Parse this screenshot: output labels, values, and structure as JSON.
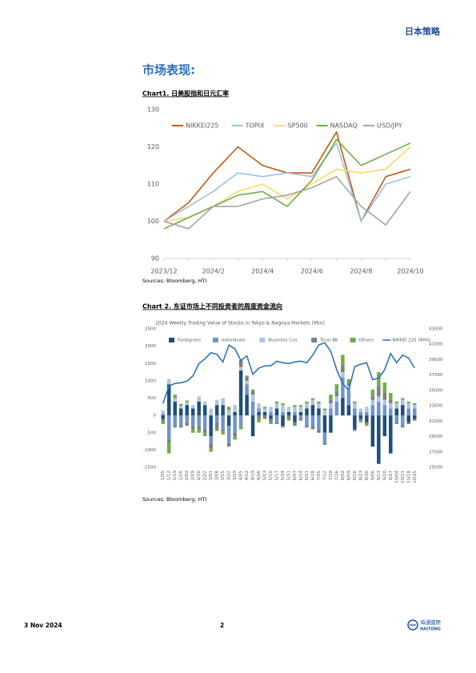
{
  "header": {
    "title": "日本策略"
  },
  "section_title": "市场表现:",
  "chart_data": [
    {
      "type": "line",
      "caption": "Chart1.  日美股指和日元汇率",
      "source": "Sources: Bloomberg, HTI",
      "categories": [
        "2023/12",
        null,
        "2024/2",
        null,
        "2024/4",
        null,
        "2024/6",
        null,
        "2024/8",
        null,
        "2024/10"
      ],
      "ylim": [
        90,
        130
      ],
      "yticks": [
        90,
        100,
        110,
        120,
        130
      ],
      "grid": false,
      "legend": "top",
      "series": [
        {
          "name": "NIKKEI225",
          "color": "#c55a11",
          "values": [
            100,
            105,
            113,
            120,
            115,
            113,
            113,
            124,
            100,
            112,
            114
          ]
        },
        {
          "name": "TOPIX",
          "color": "#9dc3e6",
          "values": [
            100,
            104,
            108,
            113,
            112,
            113,
            112,
            121,
            100,
            110,
            112
          ]
        },
        {
          "name": "SP500",
          "color": "#ffd966",
          "values": [
            100,
            101,
            104,
            108,
            110,
            106,
            110,
            114,
            113,
            114,
            120
          ]
        },
        {
          "name": "NASDAQ",
          "color": "#70ad47",
          "values": [
            98,
            101,
            104,
            107,
            108,
            104,
            111,
            122,
            115,
            118,
            121
          ]
        },
        {
          "name": "USD/JPY",
          "color": "#a5a5a5",
          "values": [
            100,
            98,
            104,
            104,
            106,
            107,
            109,
            112,
            104,
            99,
            108
          ]
        }
      ]
    },
    {
      "type": "bar",
      "stacked": true,
      "caption": "Chart 2. 东证市场上不同投资者的周度资金流向",
      "title": "2024 Weekly Trading Value of Stocks in Tokyo & Nagoya Markets (¥bn)",
      "source": "Sources: Bloomberg, HTI",
      "categories": [
        "1/05",
        "1/12",
        "1/19",
        "1/26",
        "2/02",
        "2/09",
        "2/16",
        "2/22",
        "3/01",
        "3/08",
        "3/15",
        "3/22",
        "3/29",
        "4/05",
        "4/12",
        "4/19",
        "4/26",
        "5/03",
        "5/10",
        "5/17",
        "5/24",
        "5/31",
        "6/07",
        "6/14",
        "6/21",
        "6/28",
        "7/05",
        "7/12",
        "7/19",
        "7/26",
        "8/02",
        "8/09",
        "8/16",
        "8/23",
        "8/30",
        "9/06",
        "9/13",
        "9/20",
        "9/27",
        "10/04",
        "10/11",
        "10/18",
        "10/25"
      ],
      "ylim": [
        -1500,
        2500
      ],
      "yticks": [
        -1500,
        -1000,
        -500,
        0,
        500,
        1000,
        1500,
        2000,
        2500
      ],
      "y2lim": [
        25000,
        43000
      ],
      "y2ticks": [
        25000,
        27000,
        29000,
        31000,
        33000,
        35000,
        37000,
        39000,
        41000,
        43000
      ],
      "grid": false,
      "legend": "top",
      "series": [
        {
          "name": "Foreigners",
          "color": "#1f4e79",
          "values": [
            -100,
            900,
            400,
            200,
            300,
            200,
            400,
            300,
            -600,
            300,
            300,
            -300,
            100,
            1300,
            600,
            -600,
            100,
            100,
            -100,
            200,
            -300,
            100,
            -200,
            100,
            200,
            300,
            200,
            -500,
            -500,
            0,
            500,
            300,
            -400,
            -100,
            -200,
            -900,
            -1400,
            -600,
            -1100,
            200,
            300,
            -200,
            -100
          ]
        },
        {
          "name": "Individuals",
          "color": "#6f93cf",
          "values": [
            50,
            -700,
            -300,
            -300,
            -200,
            -300,
            -300,
            -400,
            -200,
            -200,
            -400,
            -500,
            -500,
            -300,
            300,
            400,
            100,
            0,
            100,
            -200,
            100,
            0,
            100,
            -100,
            -300,
            -300,
            -400,
            -300,
            200,
            400,
            600,
            400,
            200,
            100,
            100,
            300,
            400,
            300,
            200,
            -200,
            -300,
            200,
            200
          ]
        },
        {
          "name": "Business Cos.",
          "color": "#adc6e6",
          "values": [
            100,
            150,
            100,
            80,
            80,
            100,
            150,
            100,
            200,
            150,
            200,
            150,
            200,
            100,
            100,
            200,
            150,
            100,
            150,
            150,
            200,
            150,
            150,
            150,
            150,
            150,
            150,
            150,
            150,
            150,
            150,
            150,
            150,
            100,
            150,
            150,
            150,
            150,
            150,
            150,
            150,
            150,
            100
          ]
        },
        {
          "name": "Trust BK",
          "color": "#7f7f7f",
          "values": [
            -100,
            -100,
            -50,
            -50,
            -100,
            -100,
            -100,
            -100,
            -150,
            -200,
            -50,
            -100,
            -100,
            200,
            100,
            100,
            -100,
            -100,
            -100,
            -50,
            -50,
            -100,
            -100,
            -50,
            -50,
            -100,
            -100,
            -50,
            100,
            150,
            200,
            100,
            -50,
            -50,
            -50,
            100,
            300,
            200,
            100,
            -50,
            -50,
            -50,
            -50
          ]
        },
        {
          "name": "Others",
          "color": "#70ad47",
          "values": [
            -50,
            -300,
            100,
            50,
            50,
            -100,
            -100,
            -100,
            -100,
            -50,
            -100,
            100,
            -100,
            -100,
            50,
            50,
            -100,
            50,
            -50,
            50,
            50,
            -50,
            50,
            50,
            50,
            50,
            50,
            50,
            150,
            200,
            300,
            100,
            50,
            -50,
            -50,
            200,
            400,
            300,
            200,
            50,
            50,
            50,
            50
          ]
        },
        {
          "name": "NIKKEI 225 (RHS)",
          "color": "#2e75b6",
          "axis": "y2",
          "values": [
            33300,
            35600,
            35900,
            36000,
            36200,
            36900,
            38500,
            39100,
            39900,
            39700,
            38700,
            40900,
            40400,
            38900,
            39500,
            37100,
            37900,
            38200,
            38200,
            38800,
            38600,
            38500,
            38700,
            38800,
            38600,
            39600,
            40900,
            41200,
            40100,
            37700,
            35900,
            35000,
            38100,
            38400,
            38600,
            36400,
            36600,
            37700,
            39800,
            38600,
            39600,
            39200,
            37900
          ]
        }
      ]
    }
  ],
  "footer": {
    "date": "3 Nov 2024",
    "page": "2",
    "logo_cn": "海通國際",
    "logo_en": "HAITONG"
  }
}
